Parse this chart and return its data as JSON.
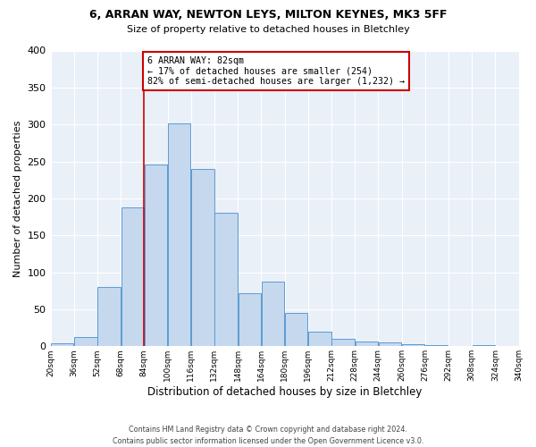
{
  "title_line1": "6, ARRAN WAY, NEWTON LEYS, MILTON KEYNES, MK3 5FF",
  "title_line2": "Size of property relative to detached houses in Bletchley",
  "xlabel": "Distribution of detached houses by size in Bletchley",
  "ylabel": "Number of detached properties",
  "footnote": "Contains HM Land Registry data © Crown copyright and database right 2024.\nContains public sector information licensed under the Open Government Licence v3.0.",
  "bar_color": "#c5d8ed",
  "bar_edge_color": "#5b9bd5",
  "background_color": "#eaf0f8",
  "grid_color": "#ffffff",
  "annotation_text": "6 ARRAN WAY: 82sqm\n← 17% of detached houses are smaller (254)\n82% of semi-detached houses are larger (1,232) →",
  "vline_x": 84,
  "vline_color": "#cc0000",
  "annotation_box_color": "#cc0000",
  "bins_left_edges": [
    20,
    36,
    52,
    68,
    84,
    100,
    116,
    132,
    148,
    164,
    180,
    196,
    212,
    228,
    244,
    260,
    276,
    292,
    308,
    324
  ],
  "bin_width": 16,
  "bar_heights": [
    4,
    13,
    80,
    188,
    246,
    301,
    240,
    180,
    72,
    88,
    45,
    20,
    10,
    6,
    5,
    3,
    2,
    0,
    2,
    0
  ],
  "xlim": [
    20,
    340
  ],
  "ylim": [
    0,
    400
  ],
  "yticks": [
    0,
    50,
    100,
    150,
    200,
    250,
    300,
    350,
    400
  ],
  "xtick_labels": [
    "20sqm",
    "36sqm",
    "52sqm",
    "68sqm",
    "84sqm",
    "100sqm",
    "116sqm",
    "132sqm",
    "148sqm",
    "164sqm",
    "180sqm",
    "196sqm",
    "212sqm",
    "228sqm",
    "244sqm",
    "260sqm",
    "276sqm",
    "292sqm",
    "308sqm",
    "324sqm",
    "340sqm"
  ]
}
